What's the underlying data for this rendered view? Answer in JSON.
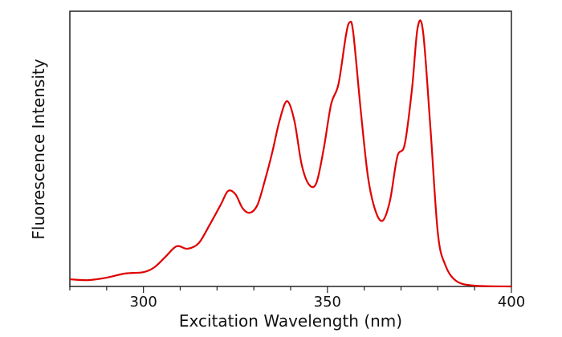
{
  "chart_data": {
    "type": "line",
    "title": "",
    "xlabel": "Excitation Wavelength (nm)",
    "ylabel": "Fluorescence Intensity",
    "xlim": [
      280,
      400
    ],
    "ylim": [
      0,
      1
    ],
    "x_ticks": [
      300,
      350,
      400
    ],
    "x_tick_labels": [
      "300",
      "350",
      "400"
    ],
    "x_minor_step": 10,
    "y_ticks": [],
    "grid": false,
    "legend": "none",
    "line_color": "#e00000",
    "series": [
      {
        "x": [
          280,
          285,
          290,
          295,
          300,
          303,
          306,
          309,
          312,
          315,
          318,
          321,
          323,
          325,
          327,
          329,
          331,
          333,
          335,
          337,
          339,
          341,
          343,
          345,
          347,
          349,
          351,
          353,
          355,
          356,
          357,
          359,
          361,
          363,
          365,
          367,
          369,
          371,
          373,
          374.5,
          376,
          378,
          380,
          382,
          385,
          390,
          400
        ],
        "y": [
          0.026,
          0.023,
          0.032,
          0.047,
          0.052,
          0.07,
          0.108,
          0.146,
          0.137,
          0.157,
          0.224,
          0.297,
          0.347,
          0.335,
          0.283,
          0.268,
          0.297,
          0.385,
          0.487,
          0.603,
          0.673,
          0.603,
          0.443,
          0.37,
          0.376,
          0.501,
          0.662,
          0.735,
          0.91,
          0.959,
          0.924,
          0.647,
          0.4,
          0.277,
          0.239,
          0.312,
          0.472,
          0.516,
          0.72,
          0.939,
          0.924,
          0.574,
          0.195,
          0.079,
          0.02,
          0.003,
          0.0
        ]
      }
    ]
  }
}
